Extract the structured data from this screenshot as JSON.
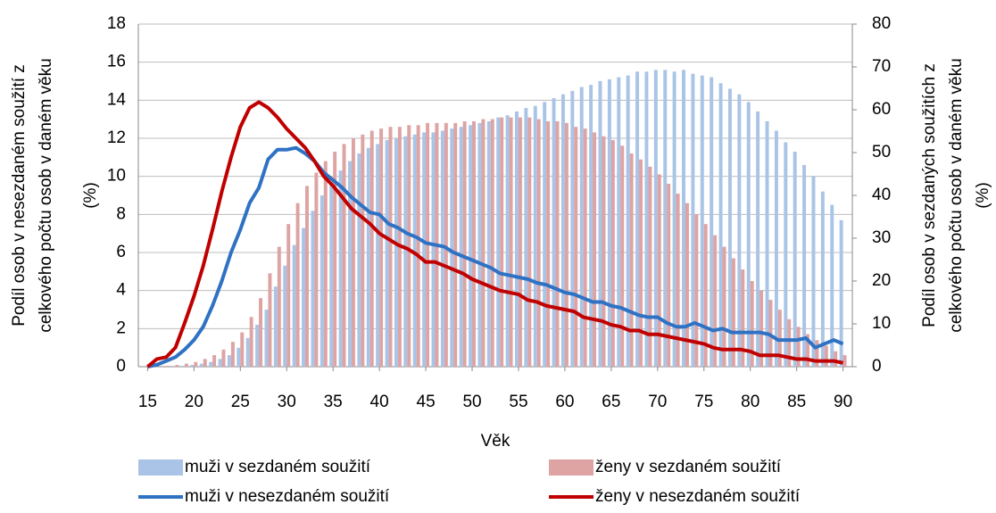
{
  "chart_data": {
    "type": "combo",
    "ylabel": [
      "Podíl osob v nesezdaném soužití z",
      "celkového počtu osob v daném věku",
      "(%)"
    ],
    "y2label": [
      "Podíl osob v sezdaných soužitích z",
      "celkového  počtu osob v daném věku",
      "(%)"
    ],
    "xlabel": "Věk",
    "x": [
      15,
      16,
      17,
      18,
      19,
      20,
      21,
      22,
      23,
      24,
      25,
      26,
      27,
      28,
      29,
      30,
      31,
      32,
      33,
      34,
      35,
      36,
      37,
      38,
      39,
      40,
      41,
      42,
      43,
      44,
      45,
      46,
      47,
      48,
      49,
      50,
      51,
      52,
      53,
      54,
      55,
      56,
      57,
      58,
      59,
      60,
      61,
      62,
      63,
      64,
      65,
      66,
      67,
      68,
      69,
      70,
      71,
      72,
      73,
      74,
      75,
      76,
      77,
      78,
      79,
      80,
      81,
      82,
      83,
      84,
      85,
      86,
      87,
      88,
      89,
      90
    ],
    "xlim": [
      14,
      91
    ],
    "xticks": [
      15,
      20,
      25,
      30,
      35,
      40,
      45,
      50,
      55,
      60,
      65,
      70,
      75,
      80,
      85,
      90
    ],
    "ylim": [
      0,
      18
    ],
    "yticks": [
      0,
      2,
      4,
      6,
      8,
      10,
      12,
      14,
      16,
      18
    ],
    "y2lim": [
      0,
      80
    ],
    "y2ticks": [
      0,
      10,
      20,
      30,
      40,
      50,
      60,
      70,
      80
    ],
    "grid": true,
    "legend": "bottom",
    "series": [
      {
        "name": "muži v sezdaném soužití",
        "kind": "bar",
        "axis": "y2",
        "color": "#a9c4e6",
        "values": [
          0,
          0,
          0,
          0,
          0.2,
          0.4,
          0.7,
          1.1,
          1.8,
          2.7,
          4.4,
          6.7,
          9.8,
          13.3,
          18.7,
          23.6,
          28.4,
          32.4,
          36.4,
          40,
          43.1,
          45.8,
          48,
          49.8,
          51.1,
          52,
          52.9,
          53.3,
          53.8,
          54.2,
          54.7,
          54.7,
          55.1,
          55.6,
          56,
          56.4,
          56.9,
          57.3,
          58.2,
          58.7,
          59.6,
          60.4,
          60.9,
          61.8,
          62.7,
          63.6,
          64.4,
          65.3,
          65.8,
          66.7,
          67.1,
          67.6,
          68,
          68.9,
          68.9,
          69.3,
          69.3,
          68.9,
          69.3,
          68.4,
          68,
          67.6,
          66.2,
          64.9,
          63.6,
          61.8,
          59.6,
          57.3,
          55.1,
          52.4,
          50.2,
          47.1,
          44.4,
          40.9,
          37.8,
          34.2
        ]
      },
      {
        "name": "ženy v sezdaném soužití",
        "kind": "bar",
        "axis": "y2",
        "color": "#dea3a3",
        "values": [
          0,
          0,
          0.2,
          0.4,
          0.7,
          1.1,
          1.8,
          2.7,
          4,
          5.8,
          8,
          11.6,
          16,
          21.8,
          28,
          33.3,
          38.2,
          42.2,
          45.3,
          48,
          50.2,
          52,
          53.3,
          54.2,
          55.1,
          55.6,
          56,
          56,
          56.4,
          56.4,
          56.9,
          56.9,
          56.9,
          56.9,
          57.3,
          57.3,
          57.8,
          57.8,
          58.2,
          58.2,
          58.2,
          58.2,
          57.8,
          57.3,
          57.3,
          56.9,
          56,
          55.6,
          54.7,
          53.8,
          52.9,
          51.6,
          49.8,
          48.4,
          46.7,
          44.9,
          42.7,
          40.4,
          38.2,
          35.6,
          33.3,
          30.7,
          28,
          25.3,
          22.7,
          20,
          17.8,
          15.6,
          13.3,
          11.1,
          9.3,
          7.6,
          6.2,
          4.9,
          3.6,
          2.7
        ]
      },
      {
        "name": "muži v nesezdaném soužití",
        "kind": "line",
        "axis": "y",
        "color": "#2f72c4",
        "values": [
          0,
          0.1,
          0.3,
          0.5,
          0.9,
          1.4,
          2.1,
          3.2,
          4.5,
          6,
          7.2,
          8.6,
          9.4,
          10.9,
          11.4,
          11.4,
          11.5,
          11.2,
          10.8,
          10.2,
          9.8,
          9.4,
          8.9,
          8.5,
          8.1,
          8,
          7.5,
          7.3,
          7,
          6.8,
          6.5,
          6.4,
          6.3,
          6,
          5.8,
          5.6,
          5.4,
          5.2,
          4.9,
          4.8,
          4.7,
          4.6,
          4.4,
          4.3,
          4.1,
          3.9,
          3.8,
          3.6,
          3.4,
          3.4,
          3.2,
          3.1,
          2.9,
          2.7,
          2.6,
          2.6,
          2.3,
          2.1,
          2.1,
          2.3,
          2.1,
          1.9,
          2,
          1.8,
          1.8,
          1.8,
          1.8,
          1.7,
          1.4,
          1.4,
          1.4,
          1.5,
          1,
          1.2,
          1.4,
          1.2
        ]
      },
      {
        "name": "ženy v nesezdaném soužití",
        "kind": "line",
        "axis": "y",
        "color": "#c00000",
        "values": [
          0,
          0.4,
          0.5,
          1,
          2.3,
          3.7,
          5.3,
          7.2,
          9.2,
          11,
          12.6,
          13.6,
          13.9,
          13.6,
          13.1,
          12.5,
          12,
          11.5,
          10.8,
          10,
          9.5,
          8.9,
          8.3,
          7.9,
          7.5,
          7,
          6.7,
          6.4,
          6.2,
          5.9,
          5.5,
          5.5,
          5.3,
          5.1,
          4.9,
          4.6,
          4.4,
          4.2,
          4,
          3.9,
          3.8,
          3.5,
          3.4,
          3.2,
          3.1,
          3,
          2.9,
          2.6,
          2.5,
          2.4,
          2.2,
          2.1,
          1.9,
          1.9,
          1.7,
          1.7,
          1.6,
          1.5,
          1.4,
          1.3,
          1.2,
          1,
          0.9,
          0.9,
          0.9,
          0.8,
          0.6,
          0.6,
          0.6,
          0.5,
          0.4,
          0.4,
          0.3,
          0.3,
          0.3,
          0.2
        ]
      }
    ]
  }
}
